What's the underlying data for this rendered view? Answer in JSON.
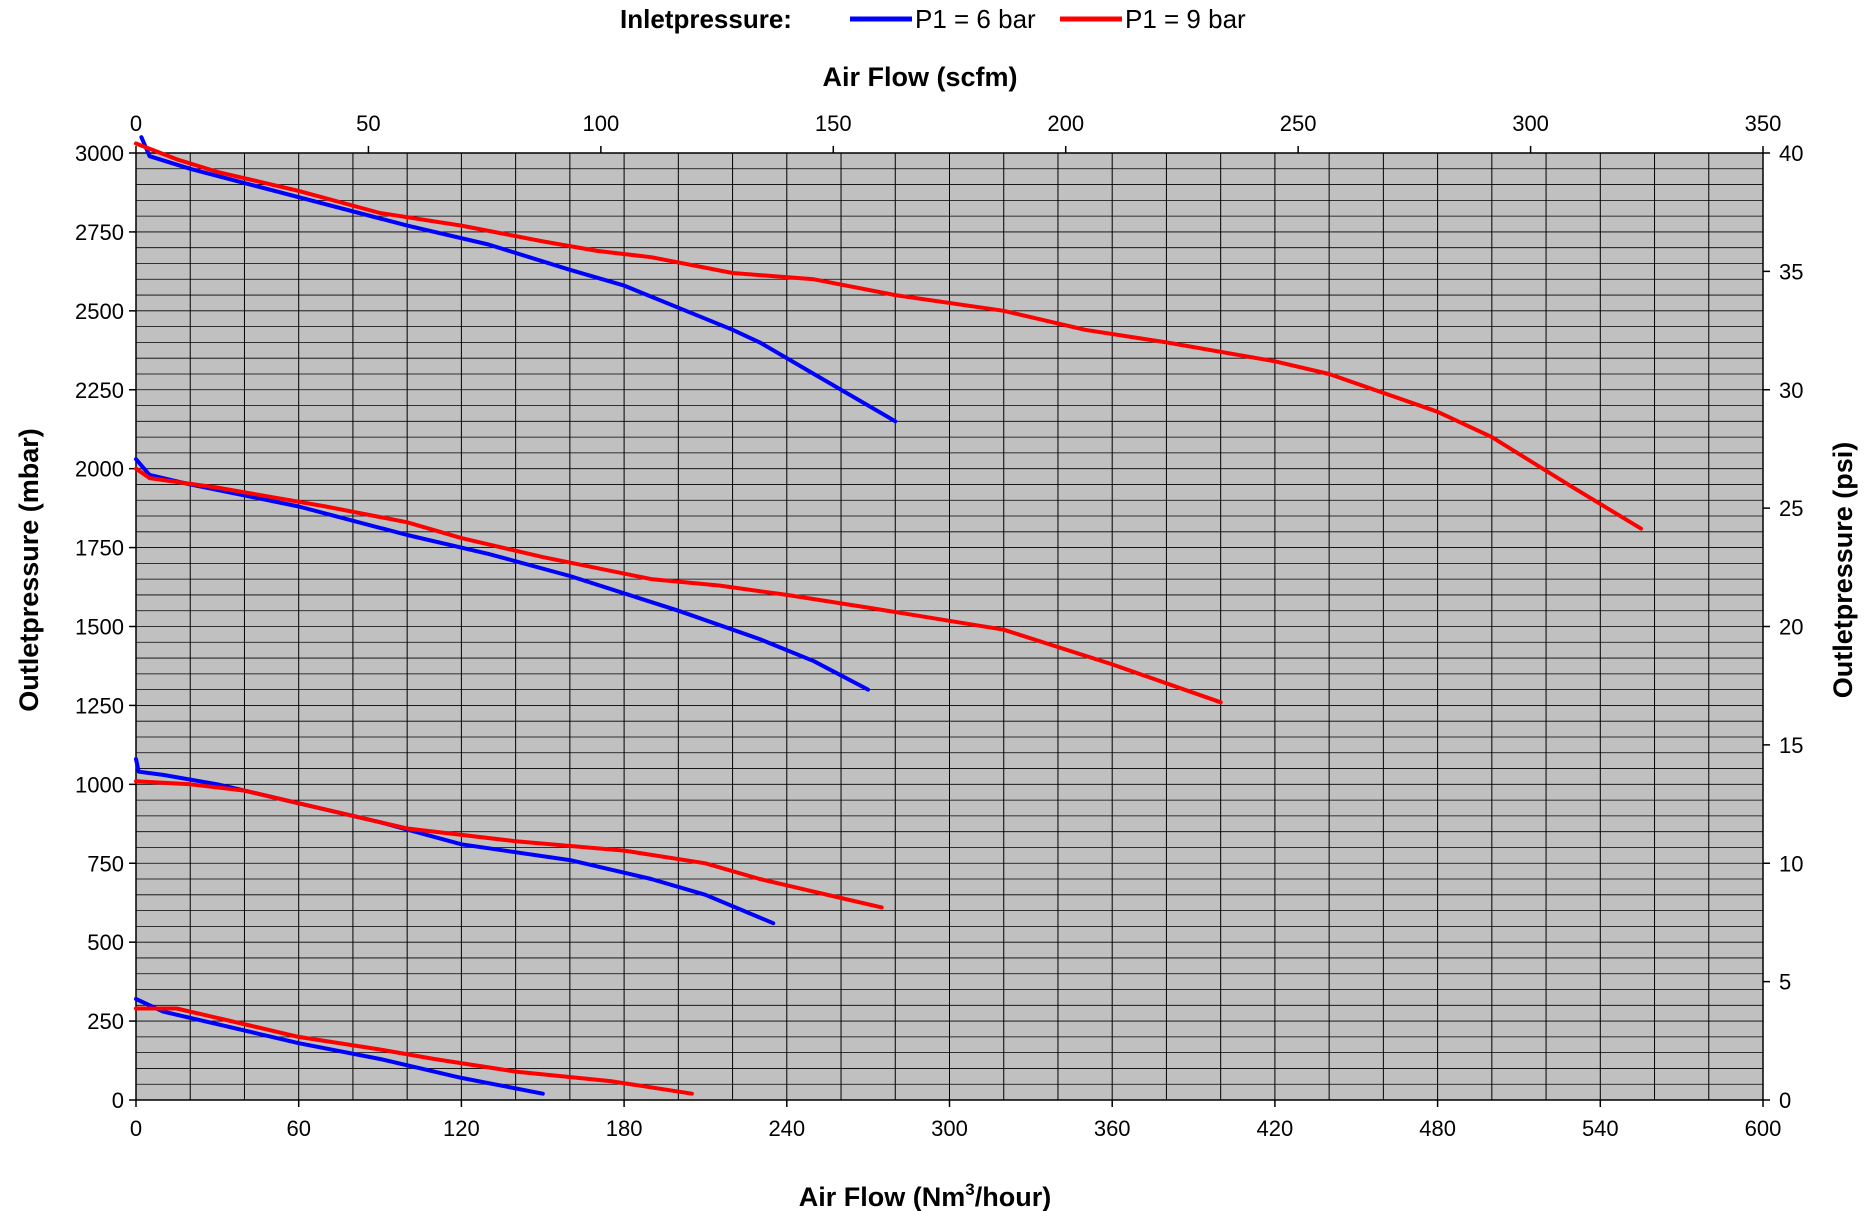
{
  "chart_data": {
    "type": "line",
    "legend": {
      "title": "Inletpressure:",
      "placement": "top-center",
      "entries": [
        {
          "name": "P1 = 6 bar",
          "color": "#0000ff"
        },
        {
          "name": "P1 = 9 bar",
          "color": "#ff0000"
        }
      ]
    },
    "axes": {
      "bottom": {
        "label_prefix": "Air Flow (Nm",
        "label_sup": "3",
        "label_suffix": "/hour)",
        "min": 0,
        "max": 600,
        "ticks": [
          "0",
          "60",
          "120",
          "180",
          "240",
          "300",
          "360",
          "420",
          "480",
          "540",
          "600"
        ]
      },
      "top": {
        "label": "Air Flow (scfm)",
        "min": 0,
        "max": 350,
        "ticks": [
          "0",
          "50",
          "100",
          "150",
          "200",
          "250",
          "300",
          "350"
        ]
      },
      "left": {
        "label": "Outletpressure (mbar)",
        "min": 0,
        "max": 3000,
        "ticks": [
          "0",
          "250",
          "500",
          "750",
          "1000",
          "1250",
          "1500",
          "1750",
          "2000",
          "2250",
          "2500",
          "2750",
          "3000"
        ]
      },
      "right": {
        "label": "Outletpressure (psi)",
        "min": 0,
        "max": 40,
        "ticks": [
          "0",
          "5",
          "10",
          "15",
          "20",
          "25",
          "30",
          "35",
          "40"
        ]
      }
    },
    "grid": true,
    "plot_background": "#c0c0c0",
    "series": [
      {
        "group": "P1 = 6 bar",
        "color": "#0000ff",
        "points": [
          [
            2,
            3050
          ],
          [
            5,
            2990
          ],
          [
            20,
            2950
          ],
          [
            60,
            2860
          ],
          [
            100,
            2770
          ],
          [
            130,
            2710
          ],
          [
            160,
            2630
          ],
          [
            180,
            2580
          ],
          [
            200,
            2510
          ],
          [
            220,
            2440
          ],
          [
            230,
            2400
          ],
          [
            250,
            2300
          ],
          [
            280,
            2150
          ]
        ]
      },
      {
        "group": "P1 = 9 bar",
        "color": "#ff0000",
        "points": [
          [
            0,
            3030
          ],
          [
            15,
            2980
          ],
          [
            30,
            2940
          ],
          [
            60,
            2880
          ],
          [
            90,
            2810
          ],
          [
            120,
            2770
          ],
          [
            150,
            2720
          ],
          [
            170,
            2690
          ],
          [
            190,
            2670
          ],
          [
            220,
            2620
          ],
          [
            250,
            2600
          ],
          [
            280,
            2550
          ],
          [
            320,
            2500
          ],
          [
            350,
            2440
          ],
          [
            380,
            2400
          ],
          [
            420,
            2340
          ],
          [
            440,
            2300
          ],
          [
            480,
            2180
          ],
          [
            500,
            2100
          ],
          [
            530,
            1940
          ],
          [
            555,
            1810
          ]
        ]
      },
      {
        "group": "P1 = 6 bar",
        "color": "#0000ff",
        "points": [
          [
            0,
            2030
          ],
          [
            5,
            1980
          ],
          [
            20,
            1950
          ],
          [
            60,
            1880
          ],
          [
            100,
            1790
          ],
          [
            130,
            1730
          ],
          [
            160,
            1660
          ],
          [
            200,
            1550
          ],
          [
            230,
            1460
          ],
          [
            250,
            1390
          ],
          [
            270,
            1300
          ]
        ]
      },
      {
        "group": "P1 = 9 bar",
        "color": "#ff0000",
        "points": [
          [
            0,
            2000
          ],
          [
            5,
            1970
          ],
          [
            30,
            1940
          ],
          [
            70,
            1880
          ],
          [
            100,
            1830
          ],
          [
            120,
            1780
          ],
          [
            150,
            1720
          ],
          [
            190,
            1650
          ],
          [
            215,
            1630
          ],
          [
            240,
            1600
          ],
          [
            270,
            1560
          ],
          [
            320,
            1490
          ],
          [
            360,
            1380
          ],
          [
            400,
            1260
          ]
        ]
      },
      {
        "group": "P1 = 6 bar",
        "color": "#0000ff",
        "points": [
          [
            0,
            1080
          ],
          [
            1,
            1040
          ],
          [
            10,
            1030
          ],
          [
            30,
            1000
          ],
          [
            60,
            940
          ],
          [
            90,
            880
          ],
          [
            120,
            810
          ],
          [
            160,
            760
          ],
          [
            190,
            700
          ],
          [
            210,
            650
          ],
          [
            235,
            560
          ]
        ]
      },
      {
        "group": "P1 = 9 bar",
        "color": "#ff0000",
        "points": [
          [
            0,
            1010
          ],
          [
            20,
            1000
          ],
          [
            40,
            980
          ],
          [
            70,
            920
          ],
          [
            100,
            860
          ],
          [
            140,
            820
          ],
          [
            180,
            790
          ],
          [
            210,
            750
          ],
          [
            230,
            700
          ],
          [
            260,
            640
          ],
          [
            275,
            610
          ]
        ]
      },
      {
        "group": "P1 = 6 bar",
        "color": "#0000ff",
        "points": [
          [
            0,
            320
          ],
          [
            10,
            280
          ],
          [
            30,
            240
          ],
          [
            60,
            180
          ],
          [
            90,
            130
          ],
          [
            120,
            70
          ],
          [
            150,
            20
          ]
        ]
      },
      {
        "group": "P1 = 9 bar",
        "color": "#ff0000",
        "points": [
          [
            0,
            290
          ],
          [
            15,
            290
          ],
          [
            30,
            260
          ],
          [
            60,
            200
          ],
          [
            90,
            160
          ],
          [
            110,
            130
          ],
          [
            140,
            90
          ],
          [
            175,
            60
          ],
          [
            205,
            20
          ]
        ]
      }
    ]
  }
}
